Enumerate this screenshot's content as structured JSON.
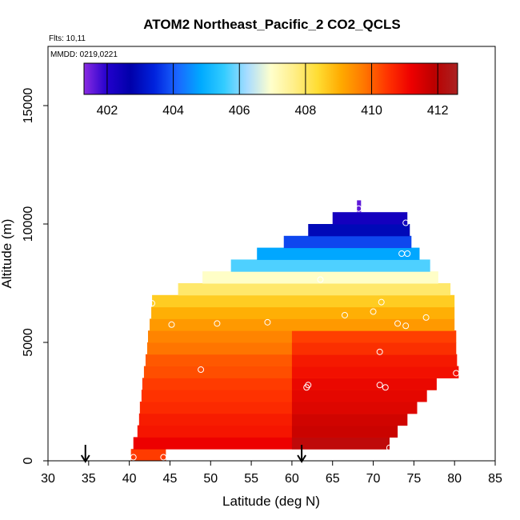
{
  "chart_data": {
    "type": "heatmap",
    "title": "ATOM2 Northeast_Pacific_2 CO2_QCLS",
    "flights_label": "Flts: 10,11",
    "dates_label": "MMDD: 0219,0221",
    "xlabel": "Latitude (deg N)",
    "ylabel": "Altitude (m)",
    "xlim": [
      30,
      85
    ],
    "ylim": [
      0,
      17500
    ],
    "x_ticks": [
      "30",
      "35",
      "40",
      "45",
      "50",
      "55",
      "60",
      "65",
      "70",
      "75",
      "80",
      "85"
    ],
    "y_ticks": [
      "0",
      "5000",
      "10000",
      "15000"
    ],
    "colorbar": {
      "range": [
        401.3,
        412.6
      ],
      "ticks": [
        "402",
        "404",
        "406",
        "408",
        "410",
        "412"
      ],
      "colors": [
        "#8a2be2",
        "#2200cc",
        "#0000aa",
        "#0022dd",
        "#1a66ff",
        "#00aaff",
        "#33ccff",
        "#aaddff",
        "#ffffcc",
        "#ffee88",
        "#ffdd33",
        "#ffaa00",
        "#ff7700",
        "#ff3300",
        "#ee0000",
        "#bb0000",
        "#aa2222"
      ]
    },
    "layers": [
      {
        "alt": 250,
        "lat_min": 40.2,
        "lat_max": 44.5,
        "value": 410.4
      },
      {
        "alt": 750,
        "lat_min": 40.5,
        "lat_max": 72.0,
        "value": 411.2
      },
      {
        "alt": 1250,
        "lat_min": 41.0,
        "lat_max": 73.0,
        "value": 410.9
      },
      {
        "alt": 1750,
        "lat_min": 41.2,
        "lat_max": 74.2,
        "value": 410.8
      },
      {
        "alt": 2250,
        "lat_min": 41.3,
        "lat_max": 75.4,
        "value": 410.6
      },
      {
        "alt": 2750,
        "lat_min": 41.5,
        "lat_max": 76.6,
        "value": 410.5
      },
      {
        "alt": 3250,
        "lat_min": 41.6,
        "lat_max": 77.8,
        "value": 410.4
      },
      {
        "alt": 3750,
        "lat_min": 41.8,
        "lat_max": 80.5,
        "value": 410.2
      },
      {
        "alt": 4250,
        "lat_min": 42.0,
        "lat_max": 80.3,
        "value": 410.1
      },
      {
        "alt": 4750,
        "lat_min": 42.2,
        "lat_max": 80.2,
        "value": 409.8
      },
      {
        "alt": 5250,
        "lat_min": 42.3,
        "lat_max": 80.2,
        "value": 409.6
      },
      {
        "alt": 5750,
        "lat_min": 42.5,
        "lat_max": 80.0,
        "value": 409.3
      },
      {
        "alt": 6250,
        "lat_min": 42.7,
        "lat_max": 80.0,
        "value": 409.0
      },
      {
        "alt": 6750,
        "lat_min": 42.8,
        "lat_max": 80.0,
        "value": 408.6
      },
      {
        "alt": 7250,
        "lat_min": 46.0,
        "lat_max": 79.5,
        "value": 407.9
      },
      {
        "alt": 7750,
        "lat_min": 49.0,
        "lat_max": 78.0,
        "value": 407.0
      },
      {
        "alt": 8250,
        "lat_min": 52.5,
        "lat_max": 77.0,
        "value": 405.7
      },
      {
        "alt": 8750,
        "lat_min": 55.7,
        "lat_max": 75.7,
        "value": 404.8
      },
      {
        "alt": 9250,
        "lat_min": 59.0,
        "lat_max": 74.7,
        "value": 403.8
      },
      {
        "alt": 9750,
        "lat_min": 62.0,
        "lat_max": 74.5,
        "value": 402.9
      },
      {
        "alt": 10250,
        "lat_min": 65.0,
        "lat_max": 74.2,
        "value": 402.3
      },
      {
        "alt": 10750,
        "lat_min": 68.0,
        "lat_max": 68.5,
        "value": 401.6
      }
    ],
    "samples": [
      {
        "lat": 40.5,
        "alt": 150
      },
      {
        "lat": 44.2,
        "alt": 150
      },
      {
        "lat": 42.8,
        "alt": 6650
      },
      {
        "lat": 45.2,
        "alt": 5750
      },
      {
        "lat": 48.8,
        "alt": 3850
      },
      {
        "lat": 50.8,
        "alt": 5800
      },
      {
        "lat": 57.0,
        "alt": 5850
      },
      {
        "lat": 63.5,
        "alt": 7650
      },
      {
        "lat": 62.0,
        "alt": 3200
      },
      {
        "lat": 61.8,
        "alt": 3100
      },
      {
        "lat": 66.5,
        "alt": 6150
      },
      {
        "lat": 70.0,
        "alt": 6300
      },
      {
        "lat": 71.0,
        "alt": 6700
      },
      {
        "lat": 70.8,
        "alt": 4600
      },
      {
        "lat": 70.8,
        "alt": 3200
      },
      {
        "lat": 71.5,
        "alt": 3100
      },
      {
        "lat": 73.0,
        "alt": 5800
      },
      {
        "lat": 74.0,
        "alt": 5700
      },
      {
        "lat": 76.5,
        "alt": 6050
      },
      {
        "lat": 73.5,
        "alt": 8750
      },
      {
        "lat": 74.2,
        "alt": 8750
      },
      {
        "lat": 74.0,
        "alt": 10050
      },
      {
        "lat": 68.2,
        "alt": 10650
      },
      {
        "lat": 80.2,
        "alt": 3700
      },
      {
        "lat": 72.0,
        "alt": 550
      }
    ],
    "arrows": [
      {
        "lat": 34.6
      },
      {
        "lat": 61.2
      }
    ]
  }
}
